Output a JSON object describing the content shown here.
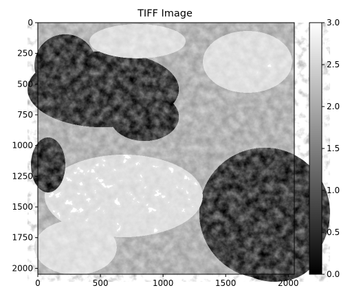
{
  "chart_data": {
    "type": "heatmap",
    "title": "TIFF Image",
    "xlabel": "",
    "ylabel": "",
    "xlim": [
      0,
      2048
    ],
    "ylim": [
      2048,
      0
    ],
    "x_ticks": [
      0,
      500,
      1000,
      1500,
      2000
    ],
    "y_ticks": [
      0,
      250,
      500,
      750,
      1000,
      1250,
      1500,
      1750,
      2000
    ],
    "colormap": "gray",
    "colorbar": {
      "min": 0.0,
      "max": 3.0,
      "ticks": [
        "0.0",
        "0.5",
        "1.0",
        "1.5",
        "2.0",
        "2.5",
        "3.0"
      ]
    },
    "levels": [
      0,
      1,
      2,
      3
    ],
    "level_colors": [
      "#000000",
      "#555555",
      "#aaaaaa",
      "#ffffff"
    ],
    "grid": false,
    "legend": "none"
  }
}
